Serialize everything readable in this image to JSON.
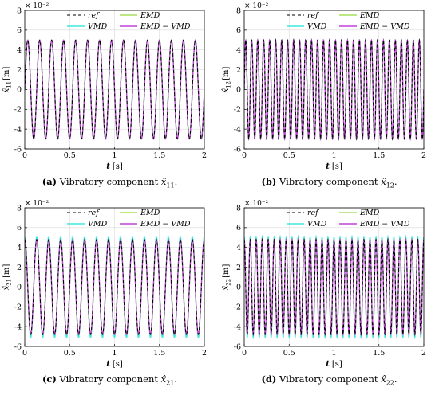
{
  "chart_data": [
    {
      "type": "line",
      "panel_tag": "(a)",
      "caption_text": "Vibratory component",
      "caption_symbol": "x̂",
      "caption_subscript": "11",
      "caption_suffix": ".",
      "ylabel_symbol": "x̂",
      "ylabel_subscript": "11",
      "ylabel_unit": "[m]",
      "xlabel_symbol": "t",
      "xlabel_unit": "[s]",
      "y_exponent": "× 10⁻²",
      "xlim": [
        0,
        2
      ],
      "ylim": [
        -6,
        8
      ],
      "xticks": [
        0,
        0.5,
        1,
        1.5,
        2
      ],
      "yticks": [
        -6,
        -4,
        -2,
        0,
        2,
        4,
        6,
        8
      ],
      "grid": true,
      "legend_position": "top",
      "signal": {
        "amplitude": 5,
        "frequency_hz": 7.5,
        "phase_deg": 0
      },
      "series": [
        {
          "name": "ref",
          "style": "dashed",
          "color": "#000000",
          "amplitude": 5
        },
        {
          "name": "EMD",
          "style": "solid",
          "color": "#a8e05f",
          "amplitude": 5
        },
        {
          "name": "VMD",
          "style": "solid",
          "color": "#3ee8dd",
          "amplitude": 5
        },
        {
          "name": "EMD − VMD",
          "style": "solid",
          "color": "#c040d8",
          "amplitude": 5
        }
      ]
    },
    {
      "type": "line",
      "panel_tag": "(b)",
      "caption_text": "Vibratory component",
      "caption_symbol": "x̂",
      "caption_subscript": "12",
      "caption_suffix": ".",
      "ylabel_symbol": "x̂",
      "ylabel_subscript": "12",
      "ylabel_unit": "[m]",
      "xlabel_symbol": "t",
      "xlabel_unit": "[s]",
      "y_exponent": "× 10⁻²",
      "xlim": [
        0,
        2
      ],
      "ylim": [
        -6,
        8
      ],
      "xticks": [
        0,
        0.5,
        1,
        1.5,
        2
      ],
      "yticks": [
        -6,
        -4,
        -2,
        0,
        2,
        4,
        6,
        8
      ],
      "grid": true,
      "legend_position": "top",
      "signal": {
        "amplitude": 5,
        "frequency_hz": 15,
        "phase_deg": 0
      },
      "series": [
        {
          "name": "ref",
          "style": "dashed",
          "color": "#000000",
          "amplitude": 5
        },
        {
          "name": "EMD",
          "style": "solid",
          "color": "#a8e05f",
          "amplitude": 5
        },
        {
          "name": "VMD",
          "style": "solid",
          "color": "#3ee8dd",
          "amplitude": 5
        },
        {
          "name": "EMD − VMD",
          "style": "solid",
          "color": "#c040d8",
          "amplitude": 5
        }
      ]
    },
    {
      "type": "line",
      "panel_tag": "(c)",
      "caption_text": "Vibratory component",
      "caption_symbol": "x̂",
      "caption_subscript": "21",
      "caption_suffix": ".",
      "ylabel_symbol": "x̂",
      "ylabel_subscript": "21",
      "ylabel_unit": "[m]",
      "xlabel_symbol": "t",
      "xlabel_unit": "[s]",
      "y_exponent": "× 10⁻²",
      "xlim": [
        0,
        2
      ],
      "ylim": [
        -6,
        8
      ],
      "xticks": [
        0,
        0.5,
        1,
        1.5,
        2
      ],
      "yticks": [
        -6,
        -4,
        -2,
        0,
        2,
        4,
        6,
        8
      ],
      "grid": true,
      "legend_position": "top",
      "signal": {
        "amplitude": 4.8,
        "frequency_hz": 7.5,
        "phase_deg": 90
      },
      "series": [
        {
          "name": "ref",
          "style": "dashed",
          "color": "#000000",
          "amplitude": 4.8
        },
        {
          "name": "EMD",
          "style": "solid",
          "color": "#a8e05f",
          "amplitude": 4.8
        },
        {
          "name": "VMD",
          "style": "solid",
          "color": "#3ee8dd",
          "amplitude": 5.1
        },
        {
          "name": "EMD − VMD",
          "style": "solid",
          "color": "#c040d8",
          "amplitude": 4.8
        }
      ]
    },
    {
      "type": "line",
      "panel_tag": "(d)",
      "caption_text": "Vibratory component",
      "caption_symbol": "x̂",
      "caption_subscript": "22",
      "caption_suffix": ".",
      "ylabel_symbol": "x̂",
      "ylabel_subscript": "22",
      "ylabel_unit": "[m]",
      "xlabel_symbol": "t",
      "xlabel_unit": "[s]",
      "y_exponent": "× 10⁻²",
      "xlim": [
        0,
        2
      ],
      "ylim": [
        -6,
        8
      ],
      "xticks": [
        0,
        0.5,
        1,
        1.5,
        2
      ],
      "yticks": [
        -6,
        -4,
        -2,
        0,
        2,
        4,
        6,
        8
      ],
      "grid": true,
      "legend_position": "top",
      "signal": {
        "amplitude": 4.8,
        "frequency_hz": 15,
        "phase_deg": 90
      },
      "series": [
        {
          "name": "ref",
          "style": "dashed",
          "color": "#000000",
          "amplitude": 4.8
        },
        {
          "name": "EMD",
          "style": "solid",
          "color": "#a8e05f",
          "amplitude": 4.8
        },
        {
          "name": "VMD",
          "style": "solid",
          "color": "#3ee8dd",
          "amplitude": 5.1
        },
        {
          "name": "EMD − VMD",
          "style": "solid",
          "color": "#c040d8",
          "amplitude": 4.8
        }
      ]
    }
  ]
}
